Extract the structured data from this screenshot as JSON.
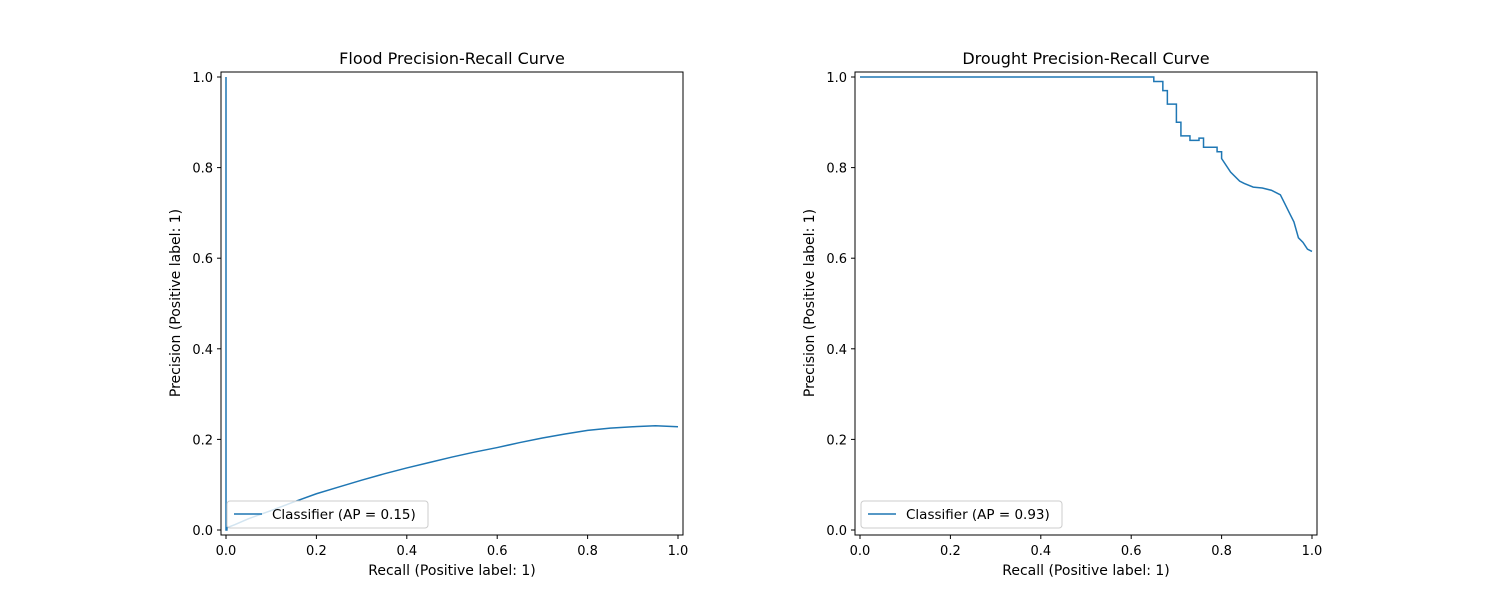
{
  "chart_data": [
    {
      "type": "line",
      "title": "Flood Precision-Recall Curve",
      "xlabel": "Recall (Positive label: 1)",
      "ylabel": "Precision (Positive label: 1)",
      "xlim": [
        0,
        1
      ],
      "ylim": [
        0,
        1
      ],
      "xticks": [
        "0.0",
        "0.2",
        "0.4",
        "0.6",
        "0.8",
        "1.0"
      ],
      "yticks": [
        "0.0",
        "0.2",
        "0.4",
        "0.6",
        "0.8",
        "1.0"
      ],
      "grid": false,
      "legend_position": "lower left",
      "series": [
        {
          "name": "Classifier (AP = 0.15)",
          "color": "#1f77b4",
          "x": [
            0.0,
            0.0,
            0.002,
            0.002,
            0.02,
            0.05,
            0.1,
            0.15,
            0.2,
            0.25,
            0.3,
            0.35,
            0.4,
            0.45,
            0.5,
            0.55,
            0.6,
            0.65,
            0.7,
            0.75,
            0.8,
            0.85,
            0.9,
            0.95,
            1.0
          ],
          "y": [
            1.0,
            0.0,
            0.0,
            0.005,
            0.012,
            0.025,
            0.043,
            0.062,
            0.08,
            0.095,
            0.11,
            0.124,
            0.137,
            0.149,
            0.161,
            0.172,
            0.182,
            0.193,
            0.203,
            0.212,
            0.22,
            0.225,
            0.228,
            0.23,
            0.228
          ]
        }
      ]
    },
    {
      "type": "line",
      "title": "Drought Precision-Recall Curve",
      "xlabel": "Recall (Positive label: 1)",
      "ylabel": "Precision (Positive label: 1)",
      "xlim": [
        0,
        1
      ],
      "ylim": [
        0,
        1
      ],
      "xticks": [
        "0.0",
        "0.2",
        "0.4",
        "0.6",
        "0.8",
        "1.0"
      ],
      "yticks": [
        "0.0",
        "0.2",
        "0.4",
        "0.6",
        "0.8",
        "1.0"
      ],
      "grid": false,
      "legend_position": "lower left",
      "series": [
        {
          "name": "Classifier (AP = 0.93)",
          "color": "#1f77b4",
          "x": [
            0.0,
            0.65,
            0.65,
            0.67,
            0.67,
            0.68,
            0.68,
            0.7,
            0.7,
            0.71,
            0.71,
            0.73,
            0.73,
            0.75,
            0.75,
            0.76,
            0.76,
            0.79,
            0.79,
            0.8,
            0.8,
            0.82,
            0.84,
            0.85,
            0.87,
            0.89,
            0.91,
            0.93,
            0.94,
            0.95,
            0.96,
            0.97,
            0.98,
            0.99,
            1.0
          ],
          "y": [
            1.0,
            1.0,
            0.99,
            0.99,
            0.97,
            0.97,
            0.94,
            0.94,
            0.9,
            0.9,
            0.87,
            0.87,
            0.86,
            0.86,
            0.865,
            0.865,
            0.845,
            0.845,
            0.835,
            0.835,
            0.82,
            0.79,
            0.77,
            0.765,
            0.757,
            0.755,
            0.75,
            0.74,
            0.72,
            0.7,
            0.68,
            0.645,
            0.635,
            0.62,
            0.615
          ]
        }
      ]
    }
  ]
}
